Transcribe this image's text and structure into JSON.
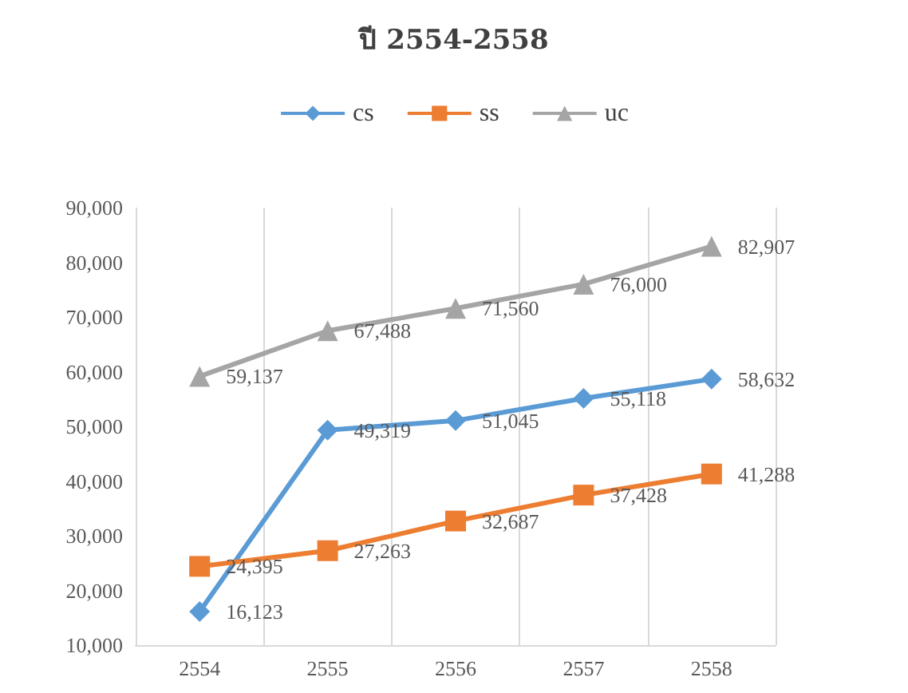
{
  "chart_data": {
    "type": "line",
    "title": "ปี 2554-2558",
    "categories": [
      "2554",
      "2555",
      "2556",
      "2557",
      "2558"
    ],
    "series": [
      {
        "name": "cs",
        "color": "#5b9bd5",
        "marker": "diamond",
        "values": [
          16123,
          49319,
          51045,
          55118,
          58632
        ],
        "value_labels": [
          "16,123",
          "49,319",
          "51,045",
          "55,118",
          "58,632"
        ]
      },
      {
        "name": "ss",
        "color": "#ed7d31",
        "marker": "square",
        "values": [
          24395,
          27263,
          32687,
          37428,
          41288
        ],
        "value_labels": [
          "24,395",
          "27,263",
          "32,687",
          "37,428",
          "41,288"
        ]
      },
      {
        "name": "uc",
        "color": "#a5a5a5",
        "marker": "triangle",
        "values": [
          59137,
          67488,
          71560,
          76000,
          82907
        ],
        "value_labels": [
          "59,137",
          "67,488",
          "71,560",
          "76,000",
          "82,907"
        ]
      }
    ],
    "ylim": [
      10000,
      90000
    ],
    "yticks": [
      {
        "value": 10000,
        "label": "10,000"
      },
      {
        "value": 20000,
        "label": "20,000"
      },
      {
        "value": 30000,
        "label": "30,000"
      },
      {
        "value": 40000,
        "label": "40,000"
      },
      {
        "value": 50000,
        "label": "50,000"
      },
      {
        "value": 60000,
        "label": "60,000"
      },
      {
        "value": 70000,
        "label": "70,000"
      },
      {
        "value": 80000,
        "label": "80,000"
      },
      {
        "value": 90000,
        "label": "90,000"
      }
    ],
    "grid": "x",
    "legend": "top"
  }
}
